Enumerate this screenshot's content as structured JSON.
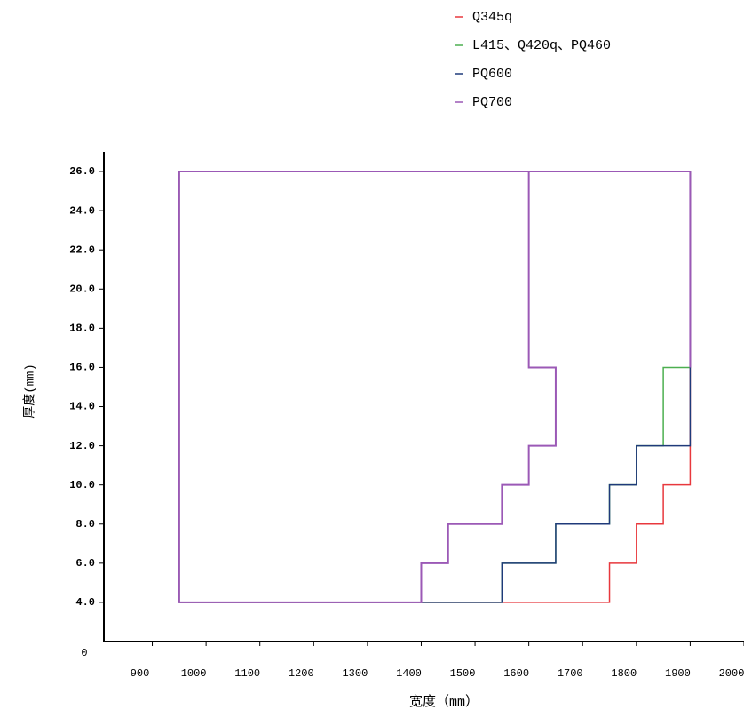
{
  "chart_data": {
    "type": "line",
    "x_label": "宽度（mm）",
    "y_label": "厚度(mm)",
    "origin_label": "0",
    "xlim": [
      810,
      2000
    ],
    "ylim": [
      2,
      27
    ],
    "xticks": [
      900,
      1000,
      1100,
      1200,
      1300,
      1400,
      1500,
      1600,
      1700,
      1800,
      1900,
      2000
    ],
    "yticks": [
      {
        "value": 4,
        "label": "4.0"
      },
      {
        "value": 6,
        "label": "6.0"
      },
      {
        "value": 8,
        "label": "8.0"
      },
      {
        "value": 10,
        "label": "10.0"
      },
      {
        "value": 12,
        "label": "12.0"
      },
      {
        "value": 14,
        "label": "14.0"
      },
      {
        "value": 16,
        "label": "16.0"
      },
      {
        "value": 18,
        "label": "18.0"
      },
      {
        "value": 20,
        "label": "20.0"
      },
      {
        "value": 22,
        "label": "22.0"
      },
      {
        "value": 24,
        "label": "24.0"
      },
      {
        "value": 26,
        "label": "26.0"
      }
    ],
    "grid": false,
    "series": [
      {
        "name": "Q345q",
        "color": "#e8383d",
        "x": [
          950,
          950,
          1900,
          1900,
          1850,
          1850,
          1800,
          1800,
          1750,
          1750,
          950
        ],
        "values": [
          4,
          26,
          26,
          10,
          10,
          8,
          8,
          6,
          6,
          4,
          4
        ]
      },
      {
        "name": "L415、Q420q、PQ460",
        "color": "#4caf50",
        "x": [
          950,
          950,
          1900,
          1900,
          1850,
          1850,
          1800,
          1800,
          1750,
          1750,
          1650,
          1650,
          1550,
          1550,
          950
        ],
        "values": [
          4,
          26,
          26,
          16,
          16,
          12,
          12,
          10,
          10,
          8,
          8,
          6,
          6,
          4,
          4
        ]
      },
      {
        "name": "PQ600",
        "color": "#1f3a7a",
        "x": [
          950,
          950,
          1900,
          1900,
          1800,
          1800,
          1750,
          1750,
          1650,
          1650,
          1550,
          1550,
          950
        ],
        "values": [
          4,
          26,
          26,
          12,
          12,
          10,
          10,
          8,
          8,
          6,
          6,
          4,
          4
        ]
      },
      {
        "name": "PQ700",
        "color": "#9b59b6",
        "x": [
          1900,
          1900,
          1600,
          1600,
          1650,
          1650,
          1600,
          1600,
          1550,
          1550,
          1450,
          1450,
          1400,
          1400,
          950,
          950,
          1600
        ],
        "values": [
          16,
          26,
          26,
          16,
          16,
          12,
          12,
          10,
          10,
          8,
          8,
          6,
          6,
          4,
          4,
          26,
          26
        ]
      }
    ]
  }
}
